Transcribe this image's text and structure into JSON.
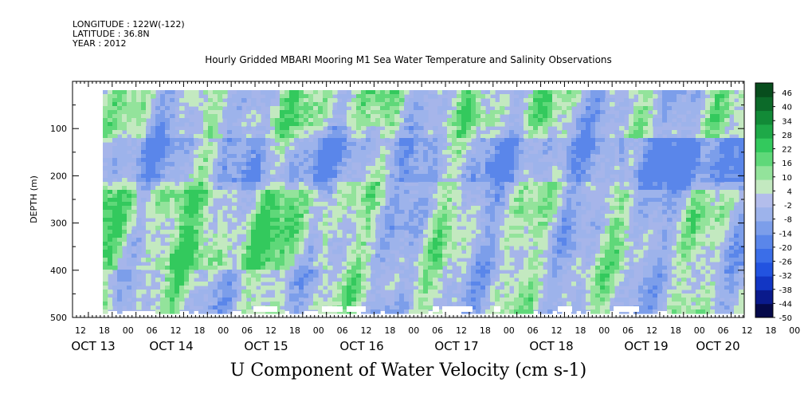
{
  "header": {
    "longitude": "LONGITUDE : 122W(-122)",
    "latitude": "LATITUDE : 36.8N",
    "year": "YEAR : 2012"
  },
  "chart_data": {
    "type": "heatmap",
    "title": "Hourly Gridded MBARI Mooring M1 Sea Water Temperature and Salinity Observations",
    "subtitle": "U Component of Water Velocity (cm s-1)",
    "ylabel": "DEPTH (m)",
    "ylim": [
      500,
      0
    ],
    "y_ticks": [
      100,
      200,
      300,
      400,
      500
    ],
    "x_hour_ticks": [
      "12",
      "18",
      "00",
      "06",
      "12",
      "18",
      "00",
      "06",
      "12",
      "18",
      "00",
      "06",
      "12",
      "18",
      "00",
      "06",
      "12",
      "18",
      "00",
      "06",
      "12",
      "18",
      "00",
      "06",
      "12",
      "18",
      "00",
      "06",
      "12",
      "18",
      "00",
      "06"
    ],
    "x_day_labels": [
      "OCT 13",
      "OCT 14",
      "OCT 15",
      "OCT 16",
      "OCT 17",
      "OCT 18",
      "OCT 19",
      "OCT 20"
    ],
    "colorbar": {
      "levels": [
        -50,
        -44,
        -38,
        -32,
        -26,
        -20,
        -14,
        -8,
        -2,
        4,
        10,
        16,
        22,
        28,
        34,
        40,
        46
      ],
      "label_values": [
        "46",
        "40",
        "34",
        "28",
        "22",
        "16",
        "10",
        "4",
        "-2",
        "-8",
        "-14",
        "-20",
        "-26",
        "-32",
        "-38",
        "-44",
        "-50"
      ],
      "colors": [
        "#05094a",
        "#0a1a8c",
        "#1236c4",
        "#2253e0",
        "#3b6ee8",
        "#5a86ea",
        "#7c9eea",
        "#9db3eb",
        "#b3bdeb",
        "#c3e9c0",
        "#93e39b",
        "#5fd879",
        "#33c95d",
        "#1ea948",
        "#128a37",
        "#0c6a29",
        "#084d1d"
      ]
    }
  }
}
